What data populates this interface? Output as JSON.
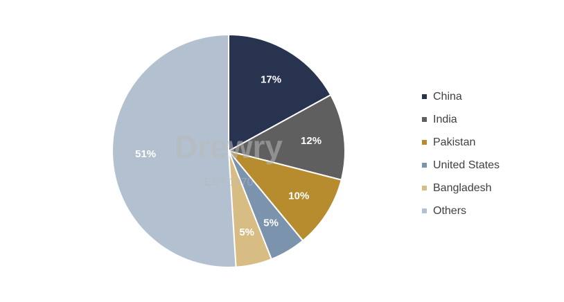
{
  "chart_data": {
    "type": "pie",
    "title": "",
    "slices": [
      {
        "label": "China",
        "value": 17,
        "display": "17%",
        "color": "#283350"
      },
      {
        "label": "India",
        "value": 12,
        "display": "12%",
        "color": "#5f5f5f"
      },
      {
        "label": "Pakistan",
        "value": 10,
        "display": "10%",
        "color": "#b78c2e"
      },
      {
        "label": "United States",
        "value": 5,
        "display": "5%",
        "color": "#7b93ad"
      },
      {
        "label": "Bangladesh",
        "value": 5,
        "display": "5%",
        "color": "#d7bd84"
      },
      {
        "label": "Others",
        "value": 51,
        "display": "51%",
        "color": "#b2c0cf"
      }
    ],
    "legend_position": "right"
  },
  "watermark": {
    "brand": "Drewry",
    "tagline": "EST 1970"
  }
}
